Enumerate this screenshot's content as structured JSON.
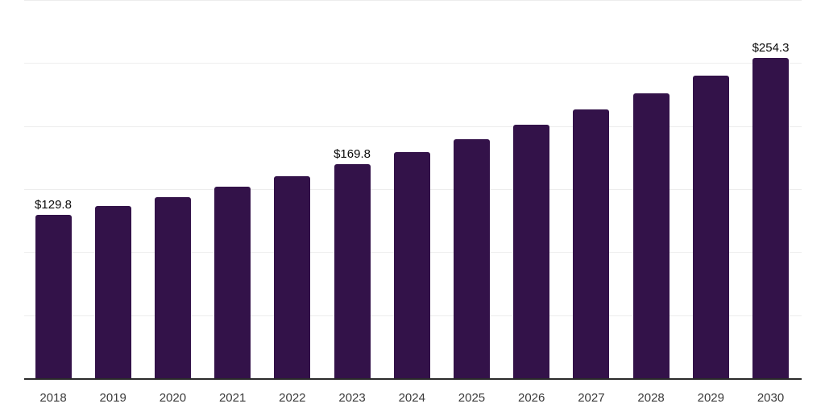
{
  "chart_data": {
    "type": "bar",
    "title": "",
    "xlabel": "",
    "ylabel": "",
    "categories": [
      "2018",
      "2019",
      "2020",
      "2021",
      "2022",
      "2023",
      "2024",
      "2025",
      "2026",
      "2027",
      "2028",
      "2029",
      "2030"
    ],
    "values": [
      129.8,
      136.3,
      143.8,
      152.0,
      160.4,
      169.8,
      179.5,
      189.8,
      201.2,
      213.0,
      225.7,
      240.0,
      254.3
    ],
    "data_labels": [
      {
        "category": "2018",
        "text": "$129.8"
      },
      {
        "category": "2023",
        "text": "$169.8"
      },
      {
        "category": "2030",
        "text": "$254.3"
      }
    ],
    "ylim": [
      0,
      300
    ],
    "gridline_values": [
      50,
      100,
      150,
      200,
      250,
      300
    ],
    "grid": "horizontal",
    "legend_position": "none",
    "y_axis_tick_labels_visible": false,
    "bar_color": "#331249",
    "gridline_color": "#ededed",
    "axis_line_color": "#2a2a2a",
    "data_label_color": "#0a0a0a",
    "tick_label_color": "#3a3a3a",
    "background_color": "#ffffff"
  }
}
